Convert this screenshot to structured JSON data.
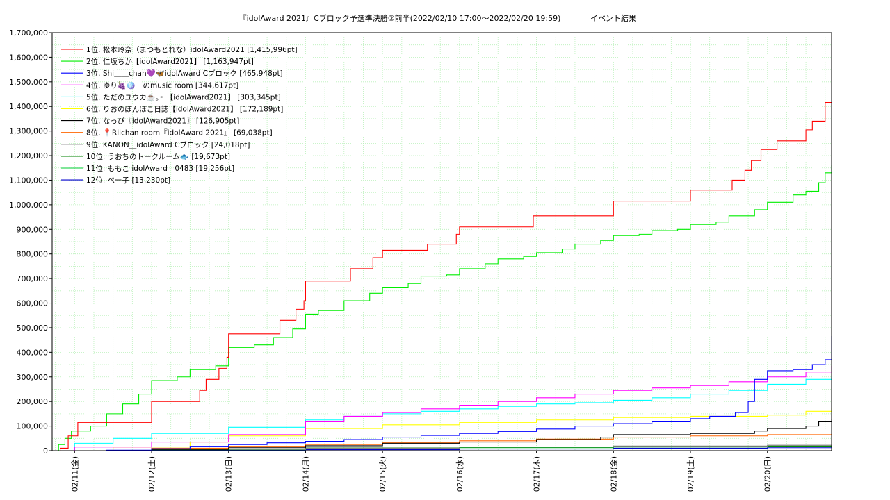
{
  "chart_data": {
    "type": "line",
    "title": "『idolAward 2021』Cブロック予選準決勝②前半(2022/02/10 17:00～2022/02/20 19:59)",
    "subtitle": "イベント結果",
    "xlabel": "",
    "ylabel": "",
    "x_range": [
      "2022-02-10T17:00",
      "2022-02-20T20:00"
    ],
    "ylim": [
      0,
      1700000
    ],
    "y_ticks": [
      0,
      100000,
      200000,
      300000,
      400000,
      500000,
      600000,
      700000,
      800000,
      900000,
      1000000,
      1100000,
      1200000,
      1300000,
      1400000,
      1500000,
      1600000,
      1700000
    ],
    "y_tick_labels": [
      "0",
      "100,000",
      "200,000",
      "300,000",
      "400,000",
      "500,000",
      "600,000",
      "700,000",
      "800,000",
      "900,000",
      "1,000,000",
      "1,100,000",
      "1,200,000",
      "1,300,000",
      "1,400,000",
      "1,500,000",
      "1,600,000",
      "1,700,000"
    ],
    "x_ticks": [
      "2022-02-11T00:00",
      "2022-02-12T00:00",
      "2022-02-13T00:00",
      "2022-02-14T00:00",
      "2022-02-15T00:00",
      "2022-02-16T00:00",
      "2022-02-17T00:00",
      "2022-02-18T00:00",
      "2022-02-19T00:00",
      "2022-02-20T00:00"
    ],
    "x_tick_labels": [
      "02/11(金)",
      "02/12(土)",
      "02/13(日)",
      "02/14(月)",
      "02/15(火)",
      "02/16(水)",
      "02/17(木)",
      "02/18(金)",
      "02/19(土)",
      "02/20(日)"
    ],
    "grid": true,
    "legend_position": "top-left",
    "series": [
      {
        "name": "1位. 松本玲奈（まつもとれな）idolAward2021 [1,415,996pt]",
        "color": "#ff0000",
        "x": [
          "2022-02-10T17:00",
          "2022-02-10T19:30",
          "2022-02-10T22:00",
          "2022-02-11T01:00",
          "2022-02-11T23:00",
          "2022-02-12T00:00",
          "2022-02-12T10:00",
          "2022-02-12T15:00",
          "2022-02-12T17:00",
          "2022-02-12T21:00",
          "2022-02-12T23:30",
          "2022-02-13T00:00",
          "2022-02-13T10:00",
          "2022-02-13T16:00",
          "2022-02-13T21:00",
          "2022-02-13T23:30",
          "2022-02-14T00:00",
          "2022-02-14T13:00",
          "2022-02-14T14:00",
          "2022-02-14T21:00",
          "2022-02-14T23:50",
          "2022-02-15T00:00",
          "2022-02-15T12:00",
          "2022-02-15T14:00",
          "2022-02-15T23:00",
          "2022-02-16T00:00",
          "2022-02-16T09:00",
          "2022-02-16T23:00",
          "2022-02-17T00:00",
          "2022-02-17T12:00",
          "2022-02-17T23:00",
          "2022-02-18T00:00",
          "2022-02-18T12:00",
          "2022-02-18T23:00",
          "2022-02-19T00:00",
          "2022-02-19T09:00",
          "2022-02-19T13:00",
          "2022-02-19T17:00",
          "2022-02-19T19:00",
          "2022-02-19T22:00",
          "2022-02-20T03:00",
          "2022-02-20T05:00",
          "2022-02-20T12:00",
          "2022-02-20T14:00",
          "2022-02-20T17:00",
          "2022-02-20T18:00",
          "2022-02-20T20:00"
        ],
        "y": [
          0,
          10000,
          60000,
          115000,
          115000,
          200000,
          200000,
          245000,
          290000,
          335000,
          380000,
          475000,
          475000,
          530000,
          575000,
          610000,
          690000,
          690000,
          740000,
          785000,
          785000,
          815000,
          815000,
          840000,
          880000,
          910000,
          910000,
          955000,
          955000,
          955000,
          955000,
          1015000,
          1015000,
          1015000,
          1060000,
          1060000,
          1100000,
          1140000,
          1180000,
          1225000,
          1260000,
          1260000,
          1305000,
          1340000,
          1340000,
          1415996,
          1415996
        ]
      },
      {
        "name": "2位. 仁坂ちか【idolAward2021】 [1,163,947pt]",
        "color": "#00ee00",
        "x": [
          "2022-02-10T17:00",
          "2022-02-10T19:00",
          "2022-02-10T21:00",
          "2022-02-10T23:00",
          "2022-02-11T05:00",
          "2022-02-11T10:00",
          "2022-02-11T15:00",
          "2022-02-11T20:00",
          "2022-02-12T00:00",
          "2022-02-12T08:00",
          "2022-02-12T12:00",
          "2022-02-12T20:00",
          "2022-02-13T00:00",
          "2022-02-13T08:00",
          "2022-02-13T14:00",
          "2022-02-13T20:00",
          "2022-02-14T00:00",
          "2022-02-14T04:00",
          "2022-02-14T12:00",
          "2022-02-14T20:00",
          "2022-02-15T00:00",
          "2022-02-15T08:00",
          "2022-02-15T12:00",
          "2022-02-15T20:00",
          "2022-02-16T00:00",
          "2022-02-16T08:00",
          "2022-02-16T12:00",
          "2022-02-16T20:00",
          "2022-02-17T00:00",
          "2022-02-17T08:00",
          "2022-02-17T12:00",
          "2022-02-17T20:00",
          "2022-02-18T00:00",
          "2022-02-18T08:00",
          "2022-02-18T12:00",
          "2022-02-18T20:00",
          "2022-02-19T00:00",
          "2022-02-19T08:00",
          "2022-02-19T12:00",
          "2022-02-19T20:00",
          "2022-02-20T00:00",
          "2022-02-20T08:00",
          "2022-02-20T12:00",
          "2022-02-20T16:00",
          "2022-02-20T18:00",
          "2022-02-20T20:00"
        ],
        "y": [
          0,
          25000,
          50000,
          80000,
          100000,
          150000,
          190000,
          230000,
          285000,
          300000,
          330000,
          345000,
          420000,
          430000,
          460000,
          495000,
          555000,
          570000,
          610000,
          640000,
          665000,
          680000,
          710000,
          715000,
          740000,
          760000,
          780000,
          790000,
          805000,
          820000,
          840000,
          855000,
          875000,
          880000,
          895000,
          900000,
          920000,
          930000,
          955000,
          980000,
          1010000,
          1040000,
          1055000,
          1090000,
          1130000,
          1163947
        ]
      },
      {
        "name": "3位. Shi＿＿chan💜🦋idolAward Cブロック [465,948pt]",
        "color": "#0000ff",
        "x": [
          "2022-02-10T17:00",
          "2022-02-11T10:00",
          "2022-02-12T00:00",
          "2022-02-12T12:00",
          "2022-02-13T00:00",
          "2022-02-13T12:00",
          "2022-02-14T00:00",
          "2022-02-14T12:00",
          "2022-02-15T00:00",
          "2022-02-15T12:00",
          "2022-02-16T00:00",
          "2022-02-16T12:00",
          "2022-02-17T00:00",
          "2022-02-17T12:00",
          "2022-02-18T00:00",
          "2022-02-18T12:00",
          "2022-02-19T00:00",
          "2022-02-19T06:00",
          "2022-02-19T14:00",
          "2022-02-19T18:00",
          "2022-02-19T20:00",
          "2022-02-20T00:00",
          "2022-02-20T08:00",
          "2022-02-20T14:00",
          "2022-02-20T18:00",
          "2022-02-20T20:00"
        ],
        "y": [
          0,
          2000,
          8000,
          18000,
          25000,
          32000,
          38000,
          45000,
          55000,
          62000,
          70000,
          78000,
          88000,
          100000,
          110000,
          120000,
          130000,
          140000,
          155000,
          200000,
          290000,
          325000,
          330000,
          350000,
          370000,
          465948
        ]
      },
      {
        "name": "4位. ゆり🍇🪩　のmusic room [344,617pt]",
        "color": "#ff00ff",
        "x": [
          "2022-02-10T17:00",
          "2022-02-11T00:00",
          "2022-02-12T00:00",
          "2022-02-13T00:00",
          "2022-02-14T00:00",
          "2022-02-14T12:00",
          "2022-02-15T00:00",
          "2022-02-15T12:00",
          "2022-02-16T00:00",
          "2022-02-16T12:00",
          "2022-02-17T00:00",
          "2022-02-17T12:00",
          "2022-02-18T00:00",
          "2022-02-18T12:00",
          "2022-02-19T00:00",
          "2022-02-19T12:00",
          "2022-02-20T00:00",
          "2022-02-20T12:00",
          "2022-02-20T20:00"
        ],
        "y": [
          0,
          15000,
          35000,
          65000,
          120000,
          140000,
          155000,
          170000,
          185000,
          200000,
          215000,
          230000,
          245000,
          255000,
          265000,
          280000,
          300000,
          320000,
          344617
        ]
      },
      {
        "name": "5位. ただのユウカ☕️｡◦ 【idolAward2021】 [303,345pt]",
        "color": "#00ffff",
        "x": [
          "2022-02-10T17:00",
          "2022-02-11T00:00",
          "2022-02-11T12:00",
          "2022-02-12T00:00",
          "2022-02-13T00:00",
          "2022-02-14T00:00",
          "2022-02-14T12:00",
          "2022-02-15T00:00",
          "2022-02-15T12:00",
          "2022-02-16T00:00",
          "2022-02-16T12:00",
          "2022-02-17T00:00",
          "2022-02-17T12:00",
          "2022-02-18T00:00",
          "2022-02-18T12:00",
          "2022-02-19T00:00",
          "2022-02-19T12:00",
          "2022-02-20T00:00",
          "2022-02-20T12:00",
          "2022-02-20T20:00"
        ],
        "y": [
          0,
          30000,
          50000,
          70000,
          95000,
          125000,
          140000,
          150000,
          160000,
          170000,
          180000,
          190000,
          195000,
          205000,
          215000,
          230000,
          245000,
          270000,
          290000,
          303345
        ]
      },
      {
        "name": "6位. りおのぼんぼこ日誌【idolAward2021】 [172,189pt]",
        "color": "#ffff00",
        "x": [
          "2022-02-10T17:00",
          "2022-02-11T12:00",
          "2022-02-12T12:00",
          "2022-02-13T00:00",
          "2022-02-14T00:00",
          "2022-02-15T00:00",
          "2022-02-16T00:00",
          "2022-02-17T00:00",
          "2022-02-18T00:00",
          "2022-02-19T00:00",
          "2022-02-20T00:00",
          "2022-02-20T12:00",
          "2022-02-20T20:00"
        ],
        "y": [
          0,
          15000,
          35000,
          60000,
          90000,
          105000,
          115000,
          125000,
          135000,
          140000,
          145000,
          160000,
          172189
        ]
      },
      {
        "name": "7位. なっぴ〖idolAward2021〗 [126,905pt]",
        "color": "#000000",
        "x": [
          "2022-02-10T17:00",
          "2022-02-12T00:00",
          "2022-02-13T00:00",
          "2022-02-14T00:00",
          "2022-02-15T00:00",
          "2022-02-16T00:00",
          "2022-02-17T00:00",
          "2022-02-17T20:00",
          "2022-02-18T00:00",
          "2022-02-19T00:00",
          "2022-02-19T20:00",
          "2022-02-20T00:00",
          "2022-02-20T12:00",
          "2022-02-20T16:00",
          "2022-02-20T20:00"
        ],
        "y": [
          0,
          5000,
          12000,
          20000,
          30000,
          35000,
          45000,
          55000,
          65000,
          70000,
          80000,
          90000,
          100000,
          120000,
          126905
        ]
      },
      {
        "name": "8位. 📍Riichan room『idolAward 2021』 [69,038pt]",
        "color": "#ff6600",
        "x": [
          "2022-02-10T17:00",
          "2022-02-12T00:00",
          "2022-02-13T00:00",
          "2022-02-14T00:00",
          "2022-02-15T00:00",
          "2022-02-16T00:00",
          "2022-02-17T00:00",
          "2022-02-18T00:00",
          "2022-02-19T00:00",
          "2022-02-20T00:00",
          "2022-02-20T20:00"
        ],
        "y": [
          0,
          10000,
          18000,
          25000,
          32000,
          40000,
          47000,
          55000,
          60000,
          65000,
          69038
        ]
      },
      {
        "name": "9位. KANON＿idolAward Cブロック [24,018pt]",
        "color": "#808080",
        "x": [
          "2022-02-10T17:00",
          "2022-02-12T00:00",
          "2022-02-14T00:00",
          "2022-02-16T00:00",
          "2022-02-18T00:00",
          "2022-02-20T00:00",
          "2022-02-20T20:00"
        ],
        "y": [
          0,
          5000,
          10000,
          15000,
          19000,
          22000,
          24018
        ]
      },
      {
        "name": "10位. うおちのトークルーム🐟 [19,673pt]",
        "color": "#008000",
        "x": [
          "2022-02-10T17:00",
          "2022-02-12T00:00",
          "2022-02-14T00:00",
          "2022-02-16T00:00",
          "2022-02-18T00:00",
          "2022-02-20T00:00",
          "2022-02-20T20:00"
        ],
        "y": [
          0,
          6000,
          11000,
          14000,
          17000,
          19000,
          19673
        ]
      },
      {
        "name": "11位. ももこ idolAward＿0483 [19,256pt]",
        "color": "#00cc33",
        "x": [
          "2022-02-10T17:00",
          "2022-02-12T00:00",
          "2022-02-14T00:00",
          "2022-02-16T00:00",
          "2022-02-18T00:00",
          "2022-02-20T00:00",
          "2022-02-20T20:00"
        ],
        "y": [
          0,
          4000,
          8000,
          12000,
          15000,
          18000,
          19256
        ]
      },
      {
        "name": "12位. ぺー子 [13,230pt]",
        "color": "#0000cc",
        "x": [
          "2022-02-10T17:00",
          "2022-02-12T00:00",
          "2022-02-14T00:00",
          "2022-02-16T00:00",
          "2022-02-18T00:00",
          "2022-02-20T00:00",
          "2022-02-20T20:00"
        ],
        "y": [
          0,
          2000,
          4000,
          7000,
          10000,
          12000,
          13230
        ]
      }
    ]
  }
}
